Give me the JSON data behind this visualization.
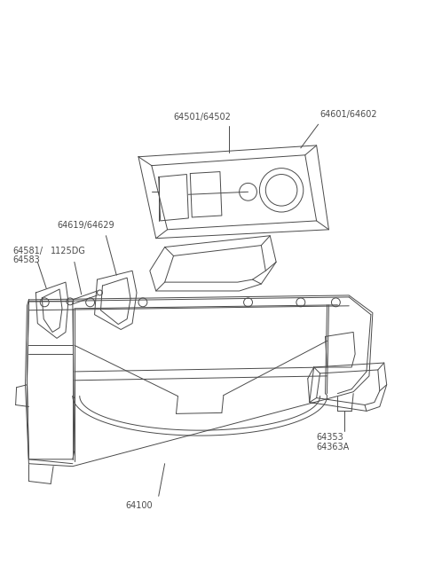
{
  "background_color": "#ffffff",
  "line_color": "#4a4a4a",
  "text_color": "#4a4a4a",
  "fig_width": 4.8,
  "fig_height": 6.55,
  "dpi": 100,
  "label_fontsize": 7.0,
  "line_width": 0.7
}
